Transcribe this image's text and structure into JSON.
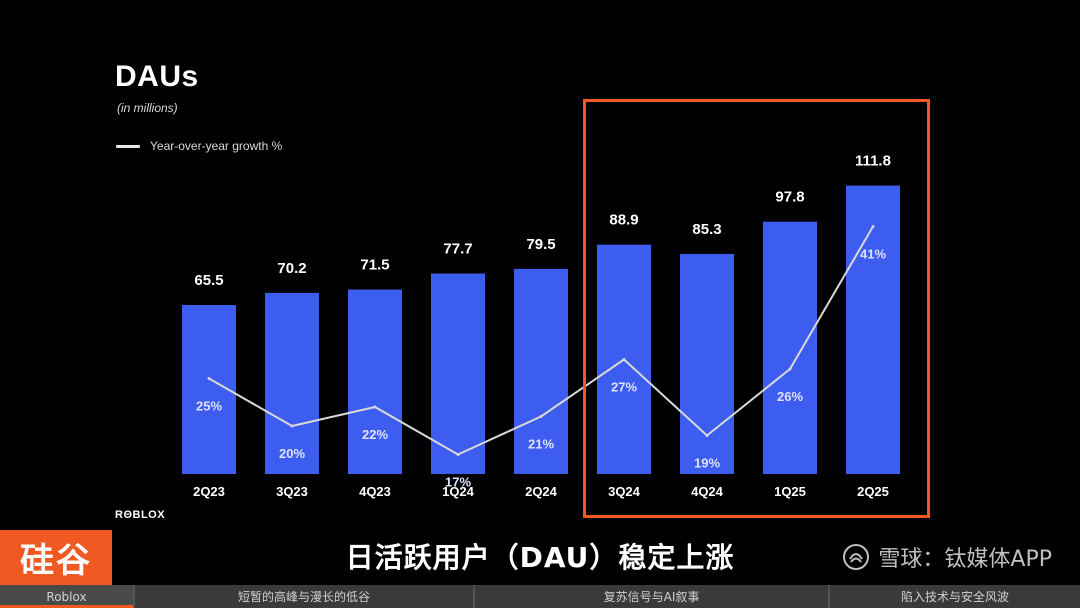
{
  "slide": {
    "title": "DAUs",
    "subtitle": "(in millions)",
    "legend_label": "Year-over-year growth %",
    "logo_text": "RΘBLOX"
  },
  "chart_data": {
    "type": "bar",
    "title": "DAUs",
    "subtitle": "(in millions)",
    "categories": [
      "2Q23",
      "3Q23",
      "4Q23",
      "1Q24",
      "2Q24",
      "3Q24",
      "4Q24",
      "1Q25",
      "2Q25"
    ],
    "series": [
      {
        "values": [
          65.5,
          70.2,
          71.5,
          77.7,
          79.5,
          88.9,
          85.3,
          97.8,
          111.8
        ]
      },
      {
        "name": "Year-over-year growth %",
        "type": "line",
        "values": [
          25,
          20,
          22,
          17,
          21,
          27,
          19,
          26,
          41
        ]
      }
    ],
    "bar_labels": [
      "65.5",
      "70.2",
      "71.5",
      "77.7",
      "79.5",
      "88.9",
      "85.3",
      "97.8",
      "111.8"
    ],
    "line_labels": [
      "25%",
      "20%",
      "22%",
      "17%",
      "21%",
      "27%",
      "19%",
      "26%",
      "41%"
    ],
    "highlighted_categories": [
      "3Q24",
      "4Q24",
      "1Q25",
      "2Q25"
    ],
    "colors": {
      "bar": "#3d5cf0",
      "line": "#d9d9d9",
      "highlight_box": "#f05a22"
    },
    "grid": false,
    "legend_position": "top-left"
  },
  "caption": {
    "brand": "硅谷",
    "text": "日活跃用户（DAU）稳定上涨",
    "watermark": "雪球：钛媒体APP"
  },
  "nav": {
    "items": [
      "Roblox",
      "短暂的高峰与漫长的低谷",
      "复苏信号与AI叙事",
      "陷入技术与安全风波"
    ],
    "active_index": 0
  }
}
